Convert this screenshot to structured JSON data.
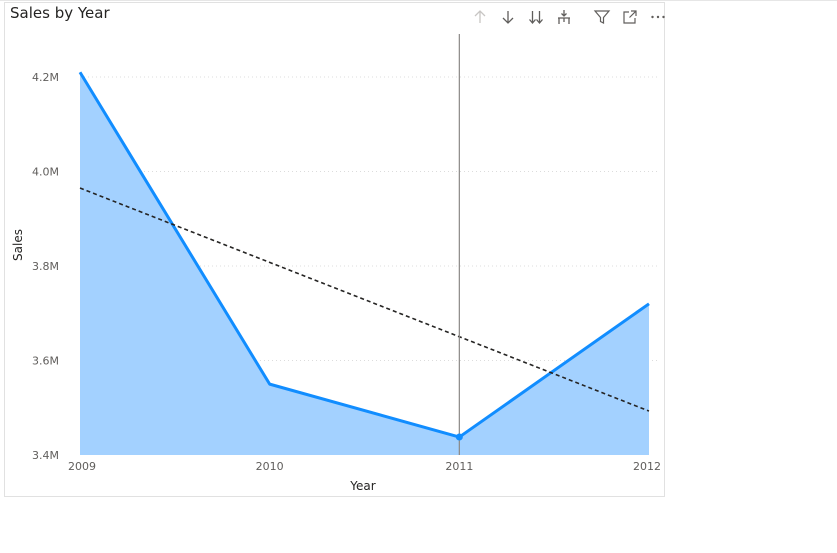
{
  "chart_data": {
    "type": "area",
    "title": "Sales by Year",
    "xlabel": "Year",
    "ylabel": "Sales",
    "x": [
      2009,
      2010,
      2011,
      2012
    ],
    "x_tick_labels": [
      "2009",
      "2010",
      "2011",
      "2012"
    ],
    "series": [
      {
        "values": [
          4210000,
          3550000,
          3438000,
          3720000
        ],
        "color": "#118dff",
        "fill": "#a3d1ff"
      }
    ],
    "trend_line": {
      "style": "dashed",
      "color": "#252423",
      "start": 3965000,
      "end": 3493000
    },
    "y_ticks": [
      3400000,
      3600000,
      3800000,
      4000000,
      4200000
    ],
    "y_tick_labels": [
      "3.4M",
      "3.6M",
      "3.8M",
      "4.0M",
      "4.2M"
    ],
    "ylim": [
      3400000,
      4200000
    ],
    "highlighted_x": 2011,
    "grid": true,
    "legend": "none"
  },
  "toolbar": {
    "icons": [
      "arrow-up-icon",
      "arrow-down-icon",
      "double-arrow-down-icon",
      "expand-hierarchy-icon",
      "filter-icon",
      "focus-mode-icon",
      "more-options-icon"
    ]
  }
}
